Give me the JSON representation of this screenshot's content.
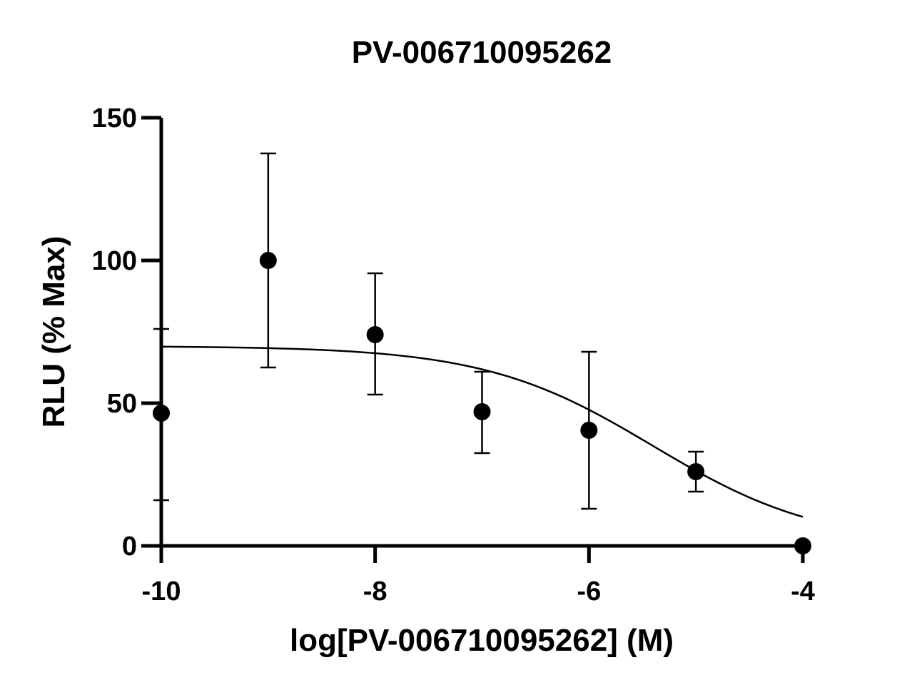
{
  "chart_data": {
    "type": "scatter",
    "title": "PV-006710095262",
    "xlabel": "log[PV-006710095262] (M)",
    "ylabel": "RLU (% Max)",
    "xlim": [
      -10,
      -4
    ],
    "ylim": [
      0,
      150
    ],
    "x_ticks": [
      -10,
      -8,
      -6,
      -4
    ],
    "x_tick_labels": [
      "-10",
      "-8",
      "-6",
      "-4"
    ],
    "y_ticks": [
      0,
      50,
      100,
      150
    ],
    "y_tick_labels": [
      "0",
      "50",
      "100",
      "150"
    ],
    "grid": false,
    "legend": "none",
    "series": [
      {
        "x": [
          -10,
          -9,
          -8,
          -7,
          -6,
          -5,
          -4
        ],
        "y": [
          46.5,
          100,
          74,
          47,
          40.5,
          26,
          0
        ],
        "error_low": [
          16,
          62.5,
          53,
          32.5,
          13,
          19,
          0
        ],
        "error_high": [
          76,
          137.5,
          95.5,
          61,
          68,
          33,
          0
        ]
      }
    ],
    "fit_curve": {
      "model": "four-parameter logistic (inhibition)",
      "bottom": 0,
      "top": 70,
      "logIC50": -5.4,
      "hill_slope": 0.55
    },
    "colors": {
      "points": "#000000",
      "curve": "#000000",
      "axes": "#000000"
    }
  }
}
